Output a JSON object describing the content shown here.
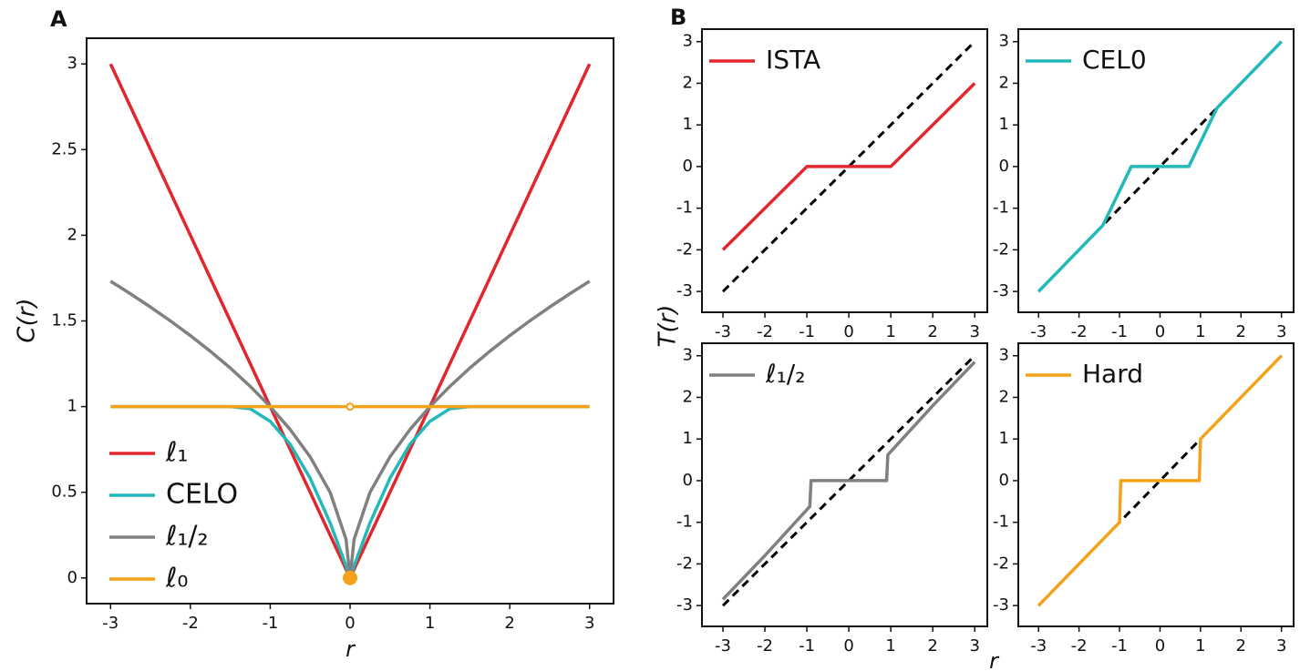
{
  "chart_data": [
    {
      "type": "line",
      "panel_label": "A",
      "xlabel": "r",
      "ylabel": "C(r)",
      "x": [
        -3,
        -2.75,
        -2.5,
        -2.25,
        -2,
        -1.75,
        -1.5,
        -1.25,
        -1,
        -0.75,
        -0.5,
        -0.25,
        -0.05,
        0,
        0.05,
        0.25,
        0.5,
        0.75,
        1,
        1.25,
        1.5,
        1.75,
        2,
        2.25,
        2.5,
        2.75,
        3
      ],
      "series": [
        {
          "name": "ℓ₁",
          "color": "#e3262b",
          "values": [
            3,
            2.75,
            2.5,
            2.25,
            2,
            1.75,
            1.5,
            1.25,
            1,
            0.75,
            0.5,
            0.25,
            0.05,
            0,
            0.05,
            0.25,
            0.5,
            0.75,
            1,
            1.25,
            1.5,
            1.75,
            2,
            2.25,
            2.5,
            2.75,
            3
          ]
        },
        {
          "name": "CELO",
          "color": "#23b9b9",
          "values": [
            1,
            1,
            1,
            1,
            1,
            1,
            1,
            0.987,
            0.914,
            0.78,
            0.582,
            0.322,
            0.07,
            0,
            0.07,
            0.322,
            0.582,
            0.78,
            0.914,
            0.987,
            1,
            1,
            1,
            1,
            1,
            1,
            1
          ]
        },
        {
          "name": "ℓ₁/₂",
          "color": "#808080",
          "values": [
            1.732,
            1.658,
            1.581,
            1.5,
            1.414,
            1.323,
            1.225,
            1.118,
            1,
            0.866,
            0.707,
            0.5,
            0.224,
            0,
            0.224,
            0.5,
            0.707,
            0.866,
            1,
            1.118,
            1.225,
            1.323,
            1.414,
            1.5,
            1.581,
            1.658,
            1.732
          ]
        },
        {
          "name": "ℓ₀",
          "color": "#f5a21b",
          "values": [
            1,
            1,
            1,
            1,
            1,
            1,
            1,
            1,
            1,
            1,
            1,
            1,
            1,
            null,
            1,
            1,
            1,
            1,
            1,
            1,
            1,
            1,
            1,
            1,
            1,
            1,
            1
          ],
          "isolated_point": {
            "x": 0,
            "y": 0
          },
          "open_point": {
            "x": 0,
            "y": 1
          }
        }
      ],
      "xlim": [
        -3.3,
        3.3
      ],
      "ylim": [
        -0.15,
        3.15
      ],
      "xticks": [
        -3,
        -2,
        -1,
        0,
        1,
        2,
        3
      ],
      "yticks": [
        0,
        0.5,
        1,
        1.5,
        2,
        2.5,
        3
      ],
      "legend": "lower left"
    },
    {
      "type": "line",
      "panel_label": "B",
      "ylabel": "T(r)",
      "series": [
        {
          "color": "#000000",
          "dashed": true,
          "x": [
            -3,
            3
          ],
          "values": [
            -3,
            3
          ]
        },
        {
          "name": "ISTA",
          "color": "#e3262b",
          "x": [
            -3,
            -1,
            1,
            3
          ],
          "values": [
            -2,
            0,
            0,
            2
          ]
        }
      ],
      "xlim": [
        -3.5,
        3.3
      ],
      "ylim": [
        -3.5,
        3.3
      ],
      "xticks": [
        -3,
        -2,
        -1,
        0,
        1,
        2,
        3
      ],
      "yticks": [
        -3,
        -2,
        -1,
        0,
        1,
        2,
        3
      ],
      "legend": "upper left"
    },
    {
      "type": "line",
      "series": [
        {
          "color": "#000000",
          "dashed": true,
          "x": [
            -3,
            3
          ],
          "values": [
            -3,
            3
          ]
        },
        {
          "name": "CEL0",
          "color": "#23b9b9",
          "x": [
            -3,
            -1.41,
            -0.71,
            0.71,
            1.41,
            3
          ],
          "values": [
            -3,
            -1.41,
            0,
            0,
            1.41,
            3
          ]
        }
      ],
      "xlim": [
        -3.5,
        3.3
      ],
      "ylim": [
        -3.5,
        3.3
      ],
      "xticks": [
        -3,
        -2,
        -1,
        0,
        1,
        2,
        3
      ],
      "yticks": [
        -3,
        -2,
        -1,
        0,
        1,
        2,
        3
      ],
      "legend": "upper left"
    },
    {
      "type": "line",
      "xlabel": "r",
      "series": [
        {
          "color": "#000000",
          "dashed": true,
          "x": [
            -3,
            3
          ],
          "values": [
            -3,
            3
          ]
        },
        {
          "name": "ℓ₁/₂",
          "color": "#808080",
          "x": [
            -3,
            -2,
            -0.93,
            -0.9,
            0.9,
            0.93,
            2,
            3
          ],
          "values": [
            -2.85,
            -1.8,
            -0.62,
            0,
            0,
            0.62,
            1.8,
            2.85
          ]
        }
      ],
      "xlim": [
        -3.5,
        3.3
      ],
      "ylim": [
        -3.5,
        3.3
      ],
      "xticks": [
        -3,
        -2,
        -1,
        0,
        1,
        2,
        3
      ],
      "yticks": [
        -3,
        -2,
        -1,
        0,
        1,
        2,
        3
      ],
      "legend": "upper left"
    },
    {
      "type": "line",
      "series": [
        {
          "color": "#000000",
          "dashed": true,
          "x": [
            -3,
            3
          ],
          "values": [
            -3,
            3
          ]
        },
        {
          "name": "Hard",
          "color": "#f5a21b",
          "x": [
            -3,
            -1,
            -0.97,
            0.97,
            1,
            3
          ],
          "values": [
            -3,
            -1,
            0,
            0,
            1,
            3
          ]
        }
      ],
      "xlim": [
        -3.5,
        3.3
      ],
      "ylim": [
        -3.5,
        3.3
      ],
      "xticks": [
        -3,
        -2,
        -1,
        0,
        1,
        2,
        3
      ],
      "yticks": [
        -3,
        -2,
        -1,
        0,
        1,
        2,
        3
      ],
      "legend": "upper left"
    }
  ]
}
